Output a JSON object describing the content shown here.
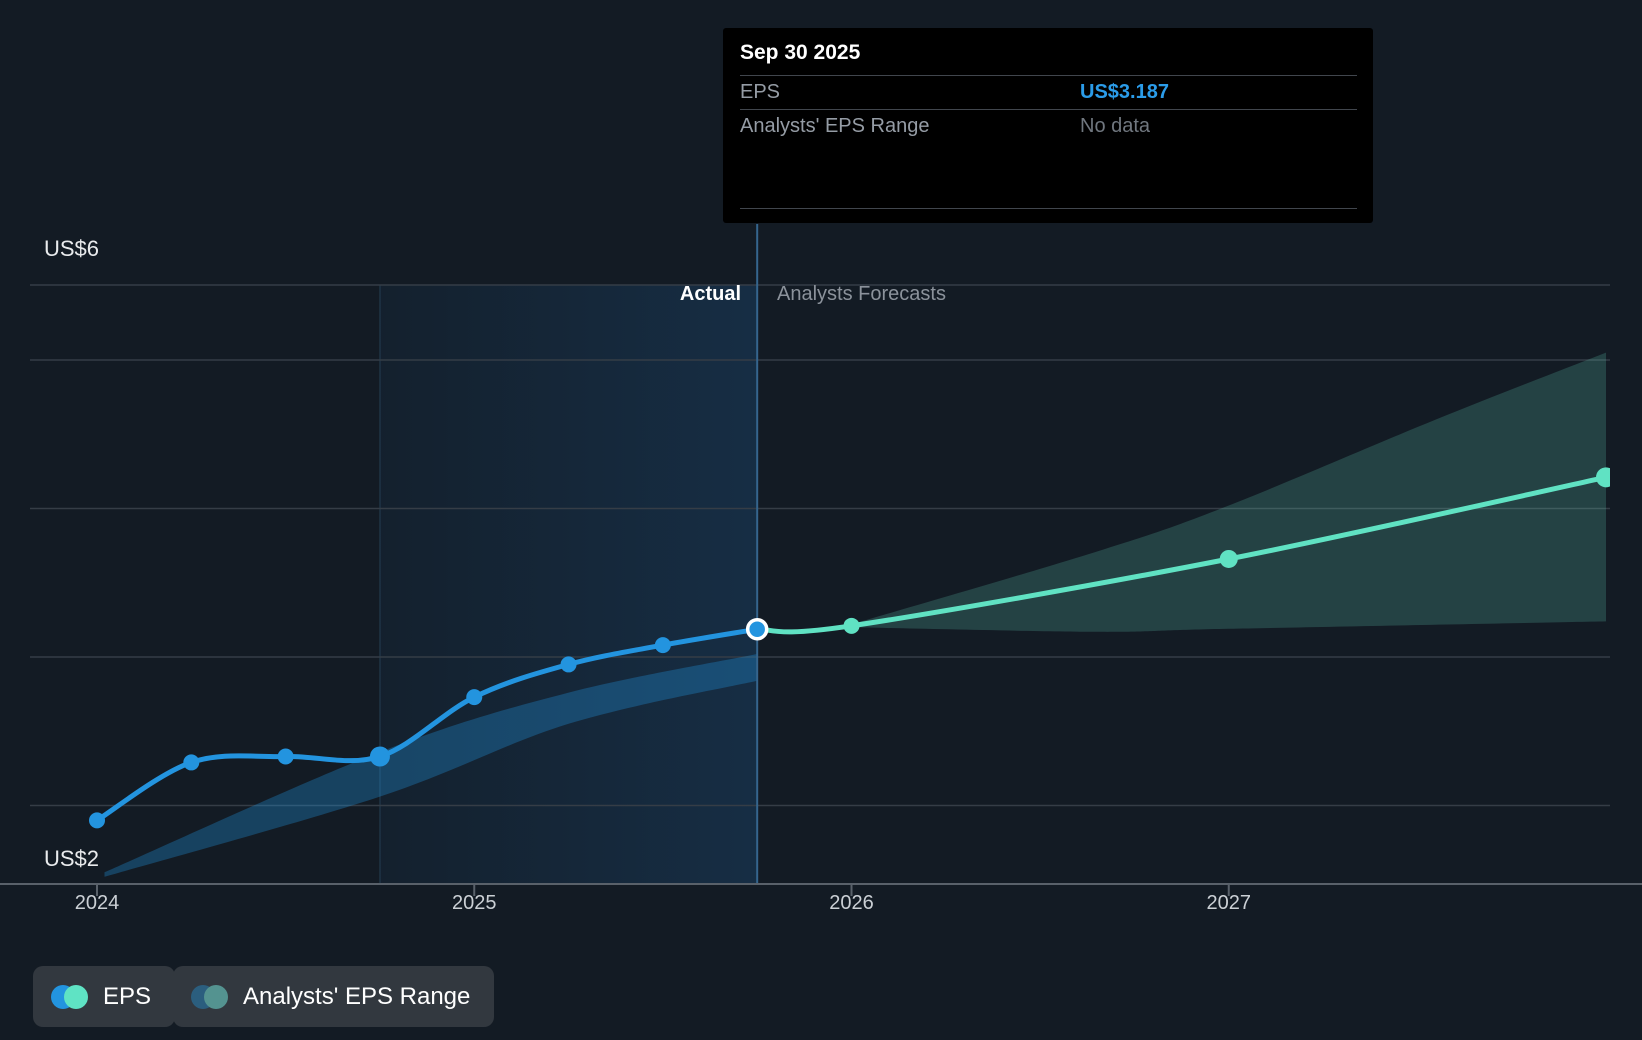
{
  "tooltip": {
    "title": "Sep 30 2025",
    "rows": [
      {
        "label": "EPS",
        "value": "US$3.187",
        "value_color": "#2B9CE9"
      },
      {
        "label": "Analysts' EPS Range",
        "value": "No data",
        "value_color": "#70777F"
      }
    ]
  },
  "phase_labels": {
    "actual": "Actual",
    "forecast": "Analysts Forecasts"
  },
  "y_axis": {
    "top_label": "US$6",
    "bottom_label": "US$2",
    "min": 2,
    "max": 6,
    "gridline_values": [
      5,
      4,
      3,
      2
    ]
  },
  "x_axis": {
    "ticks": [
      {
        "label": "2024",
        "t": 2024
      },
      {
        "label": "2025",
        "t": 2025
      },
      {
        "label": "2026",
        "t": 2026
      },
      {
        "label": "2027",
        "t": 2027
      }
    ]
  },
  "chart_data": {
    "type": "line",
    "x_ticks": [
      "2024",
      "2025",
      "2026",
      "2027"
    ],
    "y_range": [
      2,
      6
    ],
    "grid": true,
    "legend_position": "bottom-left",
    "divider_t": 2025.75,
    "highlight_band": {
      "from_t": 2024.75,
      "to_t": 2025.75
    },
    "series": [
      {
        "name": "EPS (actual)",
        "color": "#2394DF",
        "points": [
          {
            "date": "Dec 31 2023",
            "t": 2024.0,
            "value": 1.9,
            "r": 8
          },
          {
            "date": "Mar 31 2024",
            "t": 2024.25,
            "value": 2.29,
            "r": 8
          },
          {
            "date": "Jun 30 2024",
            "t": 2024.5,
            "value": 2.33,
            "r": 8
          },
          {
            "date": "Sep 30 2024",
            "t": 2024.75,
            "value": 2.33,
            "r": 10
          },
          {
            "date": "Dec 31 2024",
            "t": 2025.0,
            "value": 2.73,
            "r": 8
          },
          {
            "date": "Mar 31 2025",
            "t": 2025.25,
            "value": 2.95,
            "r": 8
          },
          {
            "date": "Jun 30 2025",
            "t": 2025.5,
            "value": 3.08,
            "r": 8
          },
          {
            "date": "Sep 30 2025",
            "t": 2025.75,
            "value": 3.187,
            "r": 9.5,
            "highlight": true
          }
        ]
      },
      {
        "name": "EPS (analysts forecast)",
        "color": "#60E2C3",
        "points": [
          {
            "date": "Sep 30 2025",
            "t": 2025.75,
            "value": 3.187,
            "r": 0
          },
          {
            "date": "Dec 31 2025",
            "t": 2026.0,
            "value": 3.21,
            "r": 8
          },
          {
            "date": "Dec 31 2026",
            "t": 2027.0,
            "value": 3.66,
            "r": 9
          },
          {
            "date": "Dec 31 2027",
            "t": 2028.0,
            "value": 4.21,
            "r": 10
          }
        ]
      }
    ],
    "bands": [
      {
        "name": "analysts-eps-range-past",
        "fill": "rgba(35,148,223,0.32)",
        "top": [
          [
            2024.02,
            1.55
          ],
          [
            2024.75,
            2.36
          ],
          [
            2025.25,
            2.76
          ],
          [
            2025.75,
            3.02
          ]
        ],
        "bottom": [
          [
            2025.75,
            2.84
          ],
          [
            2025.25,
            2.55
          ],
          [
            2024.75,
            2.06
          ],
          [
            2024.02,
            1.52
          ]
        ]
      },
      {
        "name": "analysts-eps-range-forecast",
        "fill": "rgba(102,205,183,0.22)",
        "top": [
          [
            2026.0,
            3.22
          ],
          [
            2026.65,
            3.71
          ],
          [
            2027.0,
            4.02
          ],
          [
            2027.55,
            4.6
          ],
          [
            2028.0,
            5.05
          ]
        ],
        "bottom": [
          [
            2028.0,
            3.24
          ],
          [
            2027.0,
            3.19
          ],
          [
            2026.65,
            3.17
          ],
          [
            2026.0,
            3.2
          ]
        ]
      }
    ]
  },
  "legend": [
    {
      "label": "EPS",
      "colors": [
        "#2394DF",
        "#5FE3C4"
      ]
    },
    {
      "label": "Analysts' EPS Range",
      "colors": [
        "#2B5E7E",
        "#549390"
      ]
    }
  ],
  "colors": {
    "background": "#131B24",
    "gridline": "#353D46",
    "axis": "#59616A",
    "divider": "#35658D",
    "actual_line": "#2394DF",
    "forecast_line": "#60E2C3",
    "highlight_from": "rgba(35,120,200,0.06)",
    "highlight_to": "rgba(35,130,215,0.18)"
  }
}
